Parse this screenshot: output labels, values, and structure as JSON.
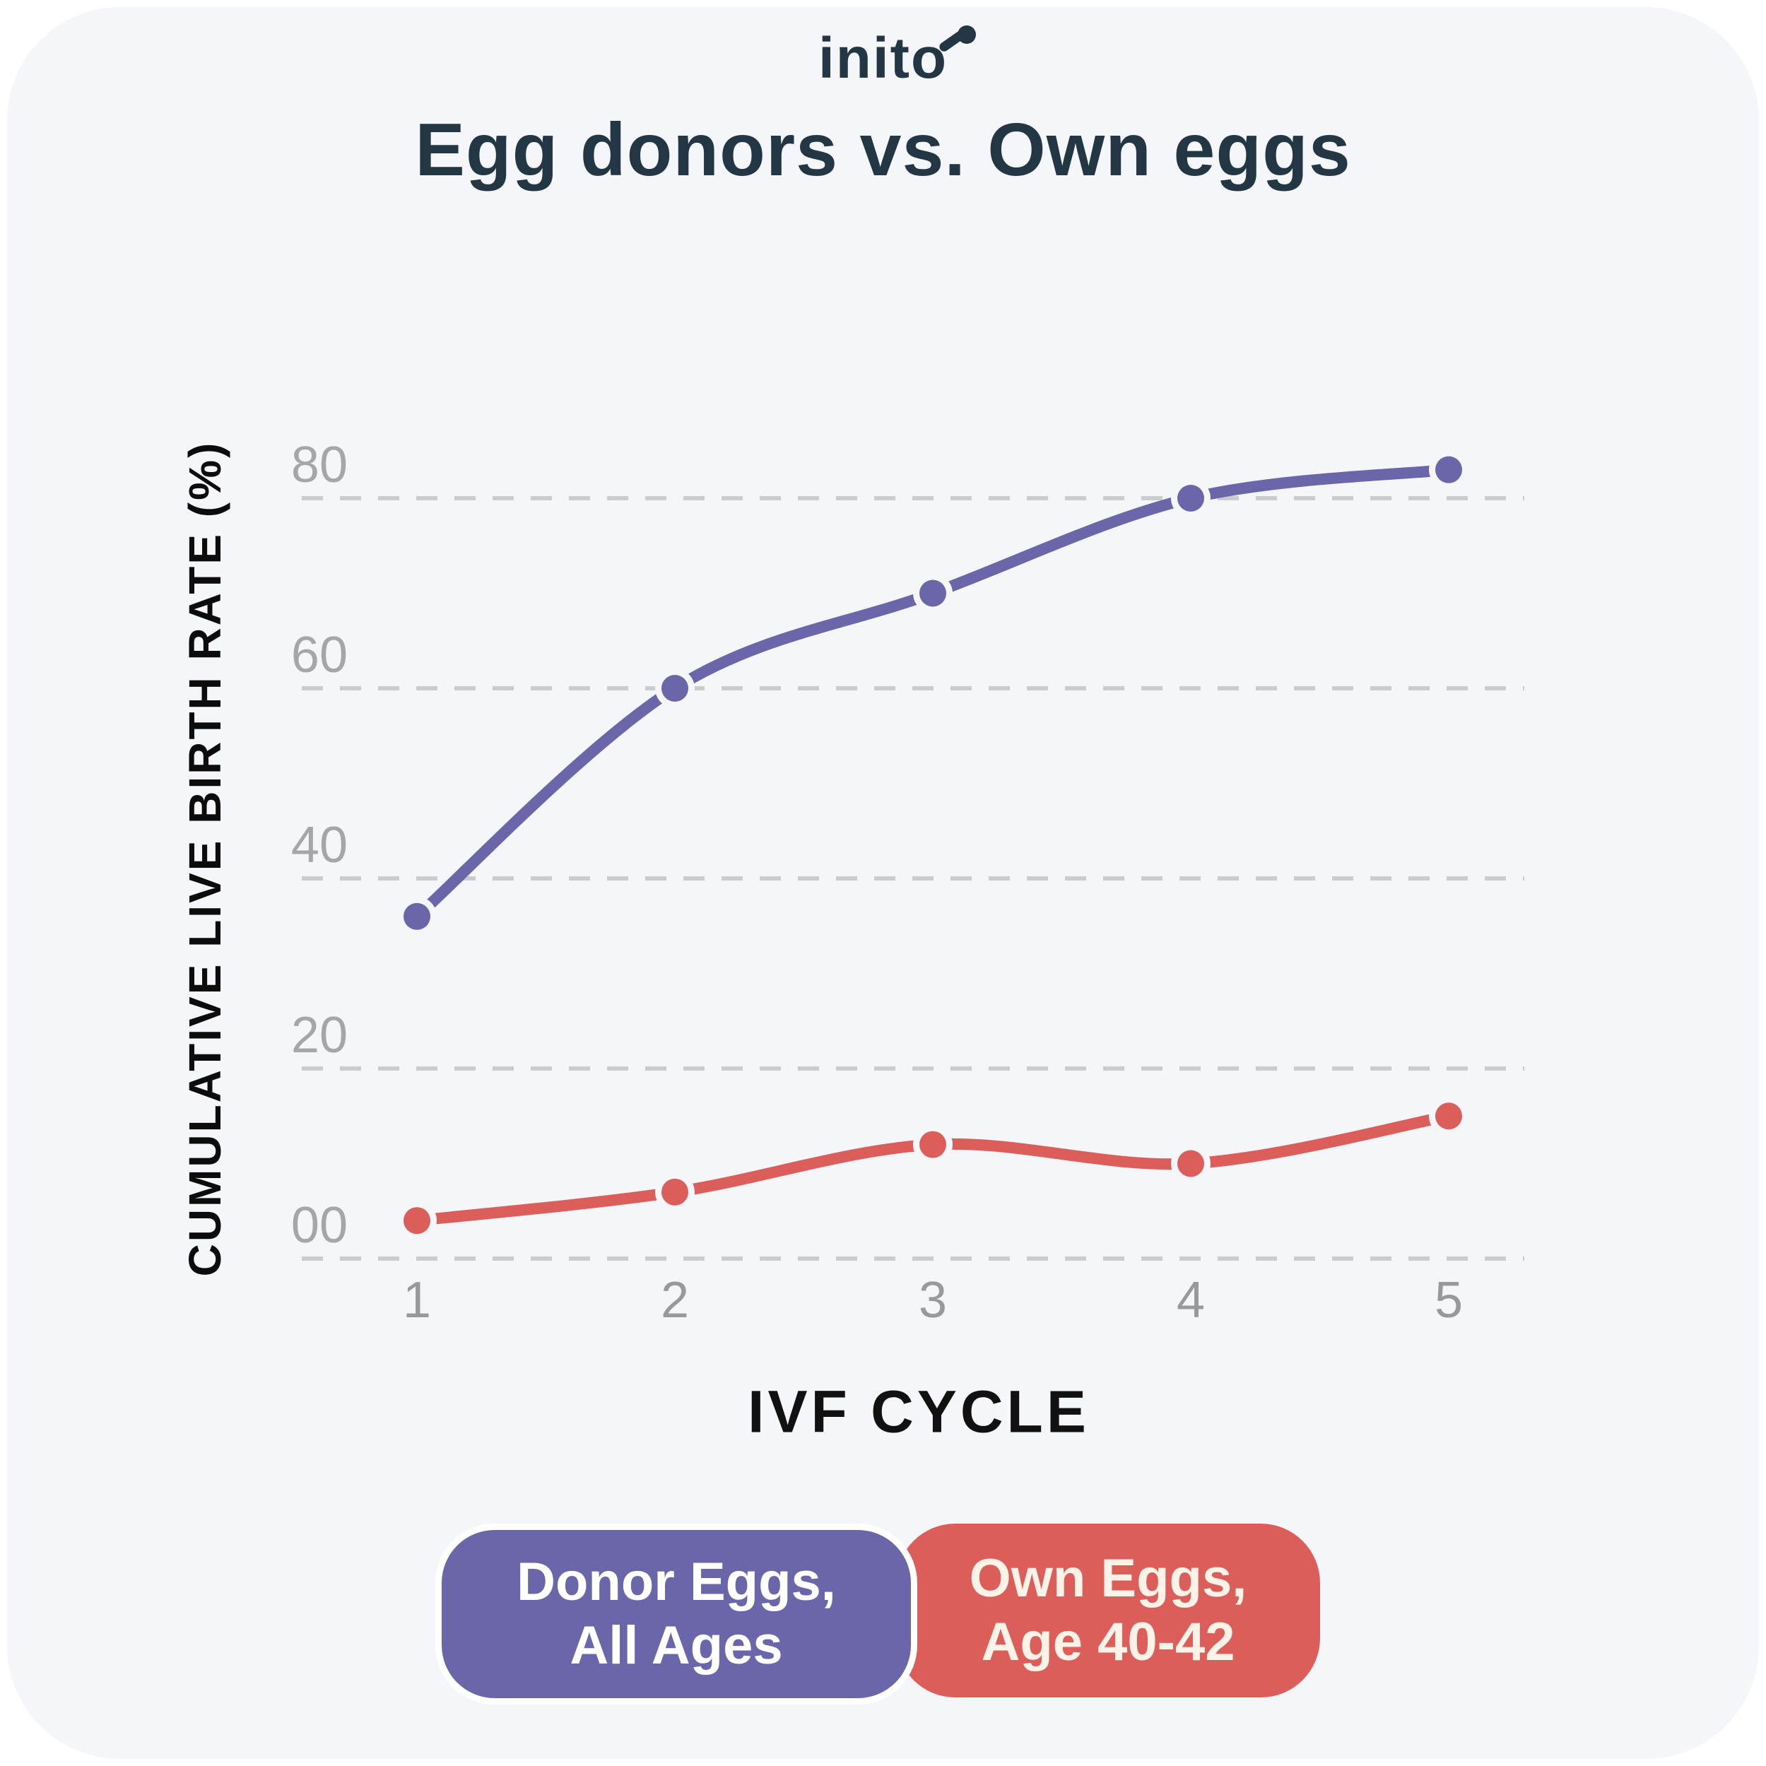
{
  "page": {
    "background": "#ffffff",
    "card_background": "#F4F6FA"
  },
  "header": {
    "logo_text": "inito",
    "logo_color": "#223743",
    "title": "Egg donors vs. Own eggs",
    "title_color": "#223743"
  },
  "chart_data": {
    "type": "line",
    "title": "Egg donors vs. Own eggs",
    "xlabel": "IVF CYCLE",
    "ylabel": "CUMULATIVE LIVE BIRTH RATE (%)",
    "categories": [
      "1",
      "2",
      "3",
      "4",
      "5"
    ],
    "x": [
      1,
      2,
      3,
      4,
      5
    ],
    "ylim": [
      0,
      90
    ],
    "y_tick_values": [
      80,
      60,
      40,
      20,
      0
    ],
    "y_tick_labels": [
      "80",
      "60",
      "40",
      "20",
      "00"
    ],
    "grid": "horizontal dashed gridlines",
    "legend_position": "bottom center",
    "series": [
      {
        "name": "Donor Eggs, All Ages",
        "color": "#6A66A9",
        "values": [
          36,
          60,
          70,
          80,
          83
        ]
      },
      {
        "name": "Own Eggs, Age 40-42",
        "color": "#DC5E5B",
        "values": [
          4,
          7,
          12,
          10,
          15
        ]
      }
    ]
  },
  "axes": {
    "x_label": "IVF CYCLE",
    "y_label": "CUMULATIVE LIVE BIRTH RATE (%)",
    "tick_color": "#A5A6AA",
    "grid_color": "#CBCCD0"
  },
  "legend": {
    "items": [
      {
        "line1": "Donor Eggs,",
        "line2": "All Ages",
        "color": "#6A66A9",
        "text_color": "#FFFFFF"
      },
      {
        "line1": "Own Eggs,",
        "line2": "Age 40-42",
        "color": "#DC5E5B",
        "text_color": "#FBF3E8"
      }
    ]
  }
}
